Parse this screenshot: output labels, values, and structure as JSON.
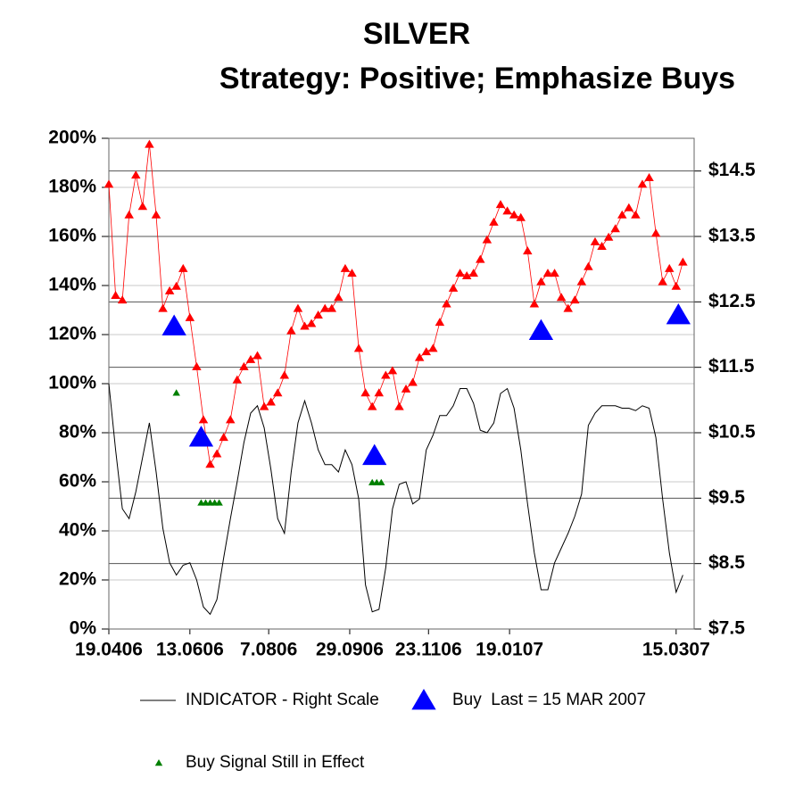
{
  "chart_data": {
    "type": "line",
    "title": "SILVER",
    "subtitle": "Strategy: Positive; Emphasize Buys",
    "x": [
      0,
      3,
      6,
      9,
      12,
      15,
      18,
      21,
      24,
      27,
      30,
      33,
      36,
      39,
      42,
      45,
      48,
      51,
      54,
      57,
      60,
      63,
      66,
      69,
      72,
      75,
      78,
      81,
      84,
      87,
      90,
      93,
      96,
      99,
      102,
      105,
      108,
      111,
      114,
      117,
      120,
      123,
      126,
      129,
      132,
      135,
      138,
      141,
      144,
      147,
      150,
      153,
      156,
      159,
      162,
      165,
      168,
      171,
      174,
      177,
      180,
      183,
      186,
      189,
      192,
      195,
      198,
      201,
      204,
      207,
      210,
      213,
      216,
      219,
      222,
      225,
      228,
      231,
      234,
      237,
      240,
      243,
      246,
      249,
      252,
      255
    ],
    "xlim": [
      0,
      260
    ],
    "xticks": [
      {
        "value": 0,
        "label": "19.0406"
      },
      {
        "value": 36,
        "label": "13.0606"
      },
      {
        "value": 71,
        "label": "7.0806"
      },
      {
        "value": 107,
        "label": "29.0906"
      },
      {
        "value": 142,
        "label": "23.1106"
      },
      {
        "value": 178,
        "label": "19.0107"
      },
      {
        "value": 252,
        "label": "15.0307"
      }
    ],
    "ylim": [
      0,
      200
    ],
    "yticks": [
      {
        "value": 0,
        "label": "0%"
      },
      {
        "value": 20,
        "label": "20%"
      },
      {
        "value": 40,
        "label": "40%"
      },
      {
        "value": 60,
        "label": "60%"
      },
      {
        "value": 80,
        "label": "80%"
      },
      {
        "value": 100,
        "label": "100%"
      },
      {
        "value": 120,
        "label": "120%"
      },
      {
        "value": 140,
        "label": "140%"
      },
      {
        "value": 160,
        "label": "160%"
      },
      {
        "value": 180,
        "label": "180%"
      },
      {
        "value": 200,
        "label": "200%"
      }
    ],
    "y2lim": [
      7.5,
      15
    ],
    "y2ticks": [
      {
        "value": 7.5,
        "label": "$7.5"
      },
      {
        "value": 8.5,
        "label": "$8.5"
      },
      {
        "value": 9.5,
        "label": "$9.5"
      },
      {
        "value": 10.5,
        "label": "$10.5"
      },
      {
        "value": 11.5,
        "label": "$11.5"
      },
      {
        "value": 12.5,
        "label": "$12.5"
      },
      {
        "value": 13.5,
        "label": "$13.5"
      },
      {
        "value": 14.5,
        "label": "$14.5"
      }
    ],
    "grid": true,
    "series": [
      {
        "name": "INDICATOR - Right Scale",
        "color": "#000000",
        "style": "line",
        "values": [
          100,
          73,
          49,
          45,
          56,
          70,
          84,
          64,
          41,
          27,
          22,
          26,
          27,
          20,
          9,
          6,
          12,
          29,
          45,
          60,
          76,
          88,
          91,
          82,
          65,
          45,
          39,
          64,
          84,
          93,
          84,
          73,
          67,
          67,
          64,
          73,
          67,
          53,
          18,
          7,
          8,
          25,
          49,
          59,
          60,
          51,
          53,
          73,
          79,
          87,
          87,
          91,
          98,
          98,
          92,
          81,
          80,
          84,
          96,
          98,
          90,
          73,
          51,
          31,
          16,
          16,
          27,
          33,
          39,
          46,
          55,
          83,
          88,
          91,
          91,
          91,
          90,
          90,
          89,
          91,
          90,
          78,
          53,
          31,
          15,
          22
        ]
      },
      {
        "color": "#ff0000",
        "style": "triangle",
        "size": 5,
        "axis": "y2",
        "values": [
          14.3,
          12.6,
          12.53,
          13.83,
          14.44,
          13.96,
          14.91,
          13.83,
          12.4,
          12.67,
          12.74,
          13.01,
          12.26,
          11.51,
          10.7,
          10.02,
          10.18,
          10.43,
          10.7,
          11.31,
          11.51,
          11.62,
          11.68,
          10.9,
          10.97,
          11.11,
          11.38,
          12.06,
          12.4,
          12.13,
          12.17,
          12.3,
          12.4,
          12.4,
          12.57,
          13.01,
          12.94,
          11.79,
          11.11,
          10.9,
          11.11,
          11.38,
          11.45,
          10.9,
          11.17,
          11.27,
          11.65,
          11.74,
          11.79,
          12.19,
          12.47,
          12.71,
          12.94,
          12.9,
          12.94,
          13.15,
          13.45,
          13.72,
          13.99,
          13.89,
          13.83,
          13.79,
          13.28,
          12.47,
          12.81,
          12.94,
          12.94,
          12.57,
          12.4,
          12.53,
          12.81,
          13.04,
          13.42,
          13.35,
          13.49,
          13.62,
          13.83,
          13.94,
          13.83,
          14.3,
          14.4,
          13.55,
          12.81,
          13.01,
          12.74,
          13.11
        ]
      },
      {
        "name": "Buy  Last = 15 MAR 2007",
        "color": "#0000ff",
        "style": "triangle",
        "size": 13,
        "axis": "y2",
        "x": [
          29,
          41,
          118,
          192,
          253
        ],
        "values": [
          12.13,
          10.43,
          10.15,
          12.06,
          12.3
        ]
      },
      {
        "name": "Buy Signal Still in Effect",
        "color": "#008000",
        "style": "triangle",
        "size": 4,
        "axis": "y2",
        "x": [
          30,
          41,
          43,
          45,
          47,
          49,
          117,
          119,
          121
        ],
        "values": [
          11.11,
          9.43,
          9.43,
          9.43,
          9.43,
          9.43,
          9.74,
          9.74,
          9.74
        ]
      }
    ]
  }
}
